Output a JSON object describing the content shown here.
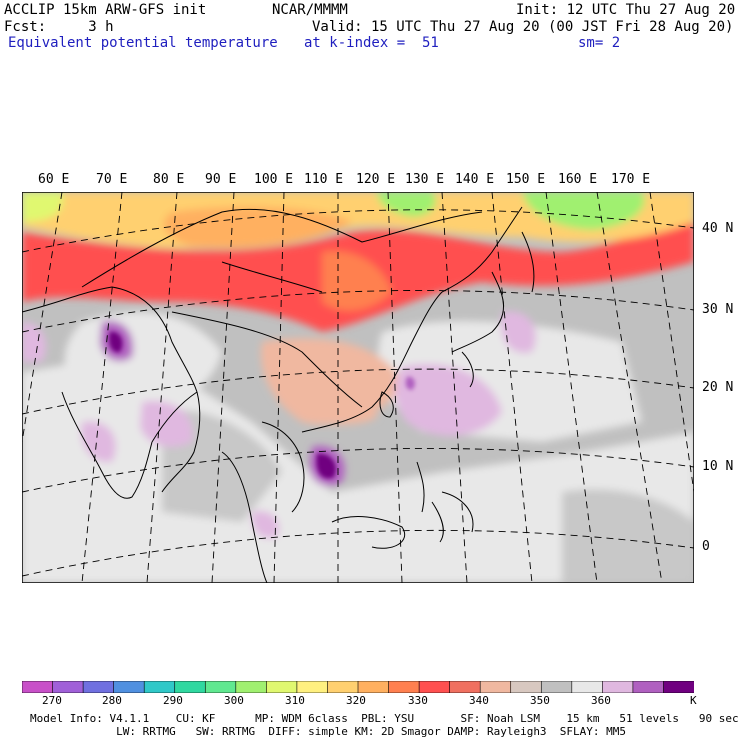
{
  "header": {
    "line1_left": "ACCLIP 15km ARW-GFS init",
    "line1_center": "NCAR/MMMM",
    "line1_right": "Init: 12 UTC Thu 27 Aug 20",
    "line2_left": "Fcst:     3 h",
    "line2_right": "Valid: 15 UTC Thu 27 Aug 20 (00 JST Fri 28 Aug 20)",
    "line3_left": "Equivalent potential temperature",
    "line3_center": "at k-index =  51",
    "line3_right": "sm= 2"
  },
  "map": {
    "title": "Equivalent potential temperature map, East/South Asia",
    "lon_labels": [
      "60 E",
      "70 E",
      "80 E",
      "90 E",
      "100 E",
      "110 E",
      "120 E",
      "130 E",
      "140 E",
      "150 E",
      "160 E",
      "170 E"
    ],
    "lat_labels": [
      "40 N",
      "30 N",
      "20 N",
      "10 N",
      "0"
    ]
  },
  "colorbar": {
    "colors": [
      "#c850c8",
      "#a060d8",
      "#7070e0",
      "#5090e0",
      "#30c8c8",
      "#30d8a0",
      "#60e890",
      "#a0f070",
      "#e0f870",
      "#fff080",
      "#ffd070",
      "#ffb060",
      "#ff8050",
      "#ff5050",
      "#f07060",
      "#f0b8a0",
      "#d8c8c0",
      "#c0c0c0",
      "#e8e8e8",
      "#e0b8e0",
      "#b060c0",
      "#700080"
    ],
    "tick_labels": [
      "270",
      "280",
      "290",
      "300",
      "310",
      "320",
      "330",
      "340",
      "350",
      "360"
    ],
    "unit": "K"
  },
  "footer": {
    "line1": "Model Info: V4.1.1    CU: KF      MP: WDM 6class  PBL: YSU       SF: Noah LSM    15 km   51 levels   90 sec",
    "line2": "             LW: RRTMG   SW: RRTMG  DIFF: simple KM: 2D Smagor DAMP: Rayleigh3  SFLAY: MM5"
  }
}
